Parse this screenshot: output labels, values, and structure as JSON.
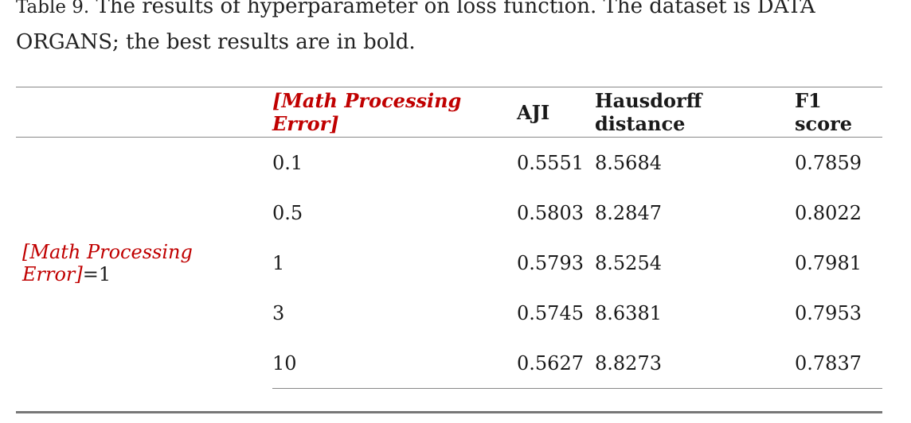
{
  "caption": {
    "label": "Table 9.",
    "text": " The results of hyperparameter on loss function. The dataset is DATA ORGANS; the best results are in bold."
  },
  "table": {
    "headers": {
      "group": "",
      "lambda": "[Math Processing Error]",
      "aji": "AJI",
      "hausdorff": "Hausdorff distance",
      "f1": "F1 score"
    },
    "group_label": {
      "math": "[Math Processing Error]",
      "suffix": "=1"
    },
    "rows": [
      {
        "lambda": "0.1",
        "aji": "0.5551",
        "hausdorff": "8.5684",
        "f1": "0.7859"
      },
      {
        "lambda": "0.5",
        "aji": "0.5803",
        "hausdorff": "8.2847",
        "f1": "0.8022"
      },
      {
        "lambda": "1",
        "aji": "0.5793",
        "hausdorff": "8.5254",
        "f1": "0.7981"
      },
      {
        "lambda": "3",
        "aji": "0.5745",
        "hausdorff": "8.6381",
        "f1": "0.7953"
      },
      {
        "lambda": "10",
        "aji": "0.5627",
        "hausdorff": "8.8273",
        "f1": "0.7837"
      }
    ]
  },
  "colors": {
    "math_error": "#c00000",
    "rule": "#888888"
  }
}
